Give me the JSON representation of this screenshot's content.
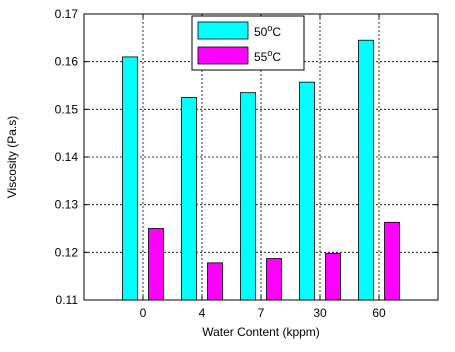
{
  "chart_data": {
    "type": "bar",
    "xlabel": "Water Content (kppm)",
    "ylabel": "Viscosity (Pa.s)",
    "categories": [
      "0",
      "4",
      "7",
      "30",
      "60"
    ],
    "ylim": [
      0.11,
      0.17
    ],
    "yticks": [
      "0.11",
      "0.12",
      "0.13",
      "0.14",
      "0.15",
      "0.16",
      "0.17"
    ],
    "grid": true,
    "legend_position": "top-center",
    "series": [
      {
        "name": "50",
        "name_sup": "o",
        "name_unit": "C",
        "color": "#00ffff",
        "values": [
          0.161,
          0.1525,
          0.1535,
          0.1557,
          0.1645
        ]
      },
      {
        "name": "55",
        "name_sup": "o",
        "name_unit": "C",
        "color": "#ff00ff",
        "values": [
          0.125,
          0.1178,
          0.1187,
          0.1198,
          0.1263
        ]
      }
    ]
  }
}
